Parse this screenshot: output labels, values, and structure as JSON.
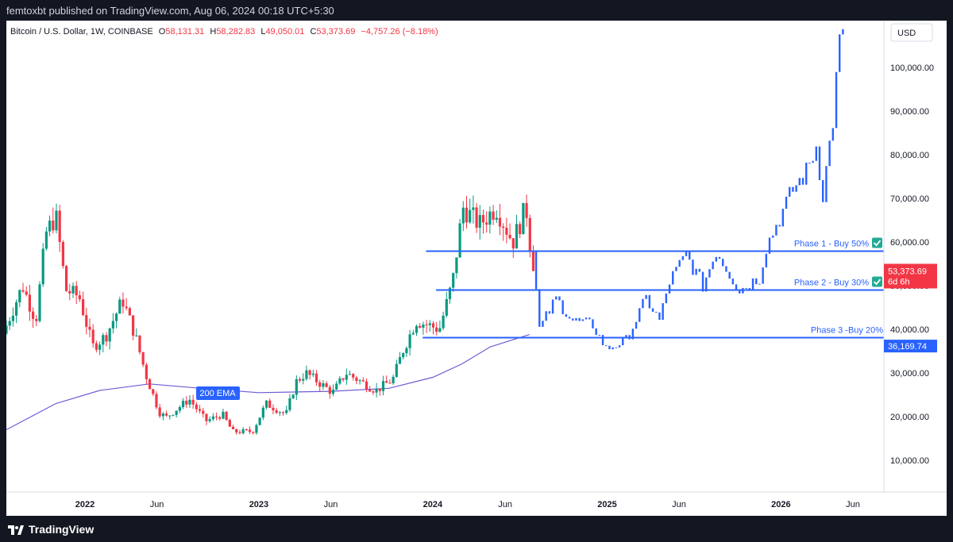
{
  "header": {
    "text": "femtoxbt published on TradingView.com, Aug 06, 2024 00:18 UTC+5:30"
  },
  "footer": {
    "brand": "TradingView",
    "logo_icon": "tradingview-logo-icon"
  },
  "legend": {
    "symbol": "Bitcoin / U.S. Dollar, 1W, COINBASE",
    "o_label": "O",
    "o": "58,131.31",
    "h_label": "H",
    "h": "58,282.83",
    "l_label": "L",
    "l": "49,050.01",
    "c_label": "C",
    "c": "53,373.69",
    "change": "−4,757.26 (−8.18%)"
  },
  "currency": "USD",
  "price_tag": {
    "price": "53,373.69",
    "countdown": "6d 6h",
    "color": "#f23645"
  },
  "level_tag": {
    "price": "36,169.74",
    "color": "#2962ff"
  },
  "ema_label": "200 EMA",
  "colors": {
    "up": "#089981",
    "down": "#f23645",
    "projection": "#2962ff",
    "ema": "#6e5bd6",
    "check": "#22ab94"
  },
  "chart_data": {
    "type": "candlestick",
    "title": "Bitcoin / U.S. Dollar, 1W, COINBASE",
    "currency": "USD",
    "y_ticks": [
      10000,
      20000,
      30000,
      40000,
      50000,
      60000,
      70000,
      80000,
      90000,
      100000
    ],
    "y_tick_labels": [
      "10,000.00",
      "20,000.00",
      "30,000.00",
      "40,000.00",
      "50,000.00",
      "60,000.00",
      "70,000.00",
      "80,000.00",
      "90,000.00",
      "100,000.00"
    ],
    "x_ticks": [
      {
        "label": "2022",
        "date": "2022-01-01",
        "bold": true
      },
      {
        "label": "Jun",
        "date": "2022-06-01",
        "bold": false
      },
      {
        "label": "2023",
        "date": "2023-01-01",
        "bold": true
      },
      {
        "label": "Jun",
        "date": "2023-06-01",
        "bold": false
      },
      {
        "label": "2024",
        "date": "2024-01-01",
        "bold": true
      },
      {
        "label": "Jun",
        "date": "2024-06-01",
        "bold": false
      },
      {
        "label": "2025",
        "date": "2025-01-01",
        "bold": true
      },
      {
        "label": "Jun",
        "date": "2025-06-01",
        "bold": false
      },
      {
        "label": "2026",
        "date": "2026-01-01",
        "bold": true
      },
      {
        "label": "Jun",
        "date": "2026-06-01",
        "bold": false
      }
    ],
    "x_range": [
      "2021-07-20",
      "2026-08-05"
    ],
    "y_range": [
      0,
      108000
    ],
    "price_path": [
      [
        "2021-07-20",
        39000
      ],
      [
        "2021-08-30",
        50000
      ],
      [
        "2021-09-27",
        42000
      ],
      [
        "2021-10-18",
        62000
      ],
      [
        "2021-11-08",
        66000
      ],
      [
        "2021-11-29",
        49000
      ],
      [
        "2021-12-27",
        47500
      ],
      [
        "2022-01-24",
        36000
      ],
      [
        "2022-02-21",
        38500
      ],
      [
        "2022-03-28",
        46800
      ],
      [
        "2022-04-25",
        38000
      ],
      [
        "2022-05-16",
        29500
      ],
      [
        "2022-06-13",
        21000
      ],
      [
        "2022-06-27",
        19800
      ],
      [
        "2022-08-15",
        24000
      ],
      [
        "2022-09-19",
        19000
      ],
      [
        "2022-10-24",
        20500
      ],
      [
        "2022-11-14",
        16500
      ],
      [
        "2022-12-26",
        16600
      ],
      [
        "2023-01-23",
        23000
      ],
      [
        "2023-03-06",
        20500
      ],
      [
        "2023-03-27",
        28000
      ],
      [
        "2023-04-17",
        30000
      ],
      [
        "2023-06-12",
        25500
      ],
      [
        "2023-07-10",
        30000
      ],
      [
        "2023-09-11",
        26000
      ],
      [
        "2023-10-16",
        28500
      ],
      [
        "2023-11-06",
        35000
      ],
      [
        "2023-12-04",
        42000
      ],
      [
        "2024-01-22",
        40000
      ],
      [
        "2024-02-19",
        51000
      ],
      [
        "2024-03-11",
        68000
      ],
      [
        "2024-04-15",
        64000
      ],
      [
        "2024-05-20",
        68000
      ],
      [
        "2024-06-24",
        60000
      ],
      [
        "2024-07-22",
        68000
      ],
      [
        "2024-08-05",
        53373.69
      ]
    ],
    "projection_path": [
      [
        "2024-08-05",
        58000
      ],
      [
        "2024-08-19",
        40000
      ],
      [
        "2024-09-23",
        47000
      ],
      [
        "2024-10-28",
        42000
      ],
      [
        "2024-12-09",
        41000
      ],
      [
        "2025-01-06",
        35500
      ],
      [
        "2025-02-17",
        37500
      ],
      [
        "2025-03-31",
        47000
      ],
      [
        "2025-04-28",
        42000
      ],
      [
        "2025-05-19",
        51000
      ],
      [
        "2025-06-23",
        57000
      ],
      [
        "2025-07-28",
        50000
      ],
      [
        "2025-08-25",
        58000
      ],
      [
        "2025-10-13",
        49000
      ],
      [
        "2025-11-24",
        52000
      ],
      [
        "2025-12-08",
        59000
      ],
      [
        "2026-02-02",
        72000
      ],
      [
        "2026-03-02",
        76000
      ],
      [
        "2026-03-23",
        82000
      ],
      [
        "2026-04-06",
        71000
      ],
      [
        "2026-04-27",
        88000
      ],
      [
        "2026-05-11",
        106000
      ]
    ],
    "ema_200": [
      [
        "2021-07-20",
        17000
      ],
      [
        "2021-11-01",
        23000
      ],
      [
        "2022-02-01",
        26000
      ],
      [
        "2022-05-16",
        27500
      ],
      [
        "2022-09-01",
        26500
      ],
      [
        "2023-01-01",
        25500
      ],
      [
        "2023-06-01",
        25800
      ],
      [
        "2023-10-01",
        26500
      ],
      [
        "2024-01-01",
        29000
      ],
      [
        "2024-03-01",
        32000
      ],
      [
        "2024-05-01",
        36000
      ],
      [
        "2024-07-22",
        38800
      ]
    ],
    "levels": [
      {
        "label": "Phase 1 - Buy 50%",
        "value": 57900,
        "check": true,
        "start": "2023-12-18"
      },
      {
        "label": "Phase 2 - Buy 30%",
        "value": 49000,
        "check": true,
        "start": "2024-01-08"
      },
      {
        "label": "Phase 3 -Buy 20%",
        "value": 38100,
        "check": false,
        "start": "2023-12-11"
      }
    ]
  }
}
